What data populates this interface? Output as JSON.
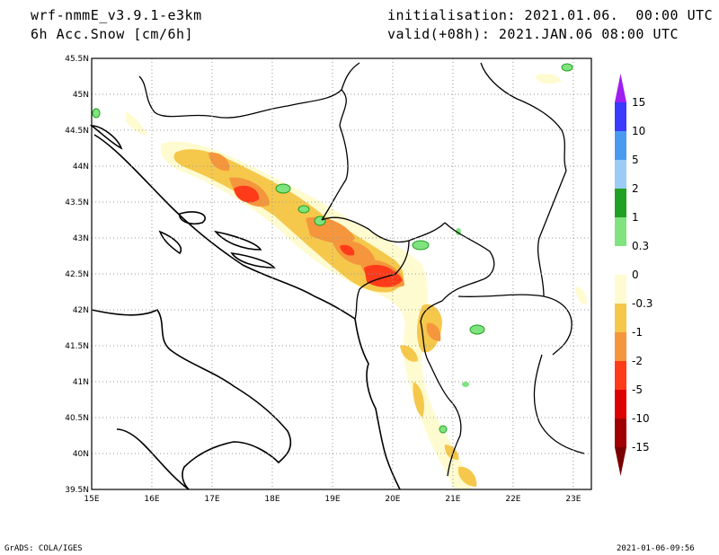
{
  "header": {
    "model": "wrf-nmmE_v3.9.1-e3km",
    "field": "6h Acc.Snow [cm/6h]",
    "init": "initialisation: 2021.01.06.  00:00 UTC",
    "valid": "valid(+08h): 2021.JAN.06 08:00 UTC"
  },
  "footer": {
    "credit": "GrADS: COLA/IGES",
    "timestamp": "2021-01-06-09:56"
  },
  "map": {
    "lon_ticks": [
      "15E",
      "16E",
      "17E",
      "18E",
      "19E",
      "20E",
      "21E",
      "22E",
      "23E"
    ],
    "lat_ticks": [
      "45.5N",
      "45N",
      "44.5N",
      "44N",
      "43.5N",
      "43N",
      "42.5N",
      "42N",
      "41.5N",
      "41N",
      "40.5N",
      "40N",
      "39.5N"
    ],
    "lon_range": [
      15,
      23.3
    ],
    "lat_range": [
      39.5,
      45.5
    ],
    "grid": true
  },
  "colorbar": {
    "labels": [
      "15",
      "10",
      "5",
      "2",
      "1",
      "0.3",
      "0",
      "-0.3",
      "-1",
      "-2",
      "-5",
      "-10",
      "-15"
    ],
    "colors": [
      "#9f1ff0",
      "#3b3bff",
      "#4a9bf0",
      "#9ccbf5",
      "#21a121",
      "#7fe37f",
      "#ffffff",
      "#fffbd0",
      "#f5c84c",
      "#f5963c",
      "#ff3b1a",
      "#dd0000",
      "#a00000",
      "#7a0000"
    ]
  }
}
